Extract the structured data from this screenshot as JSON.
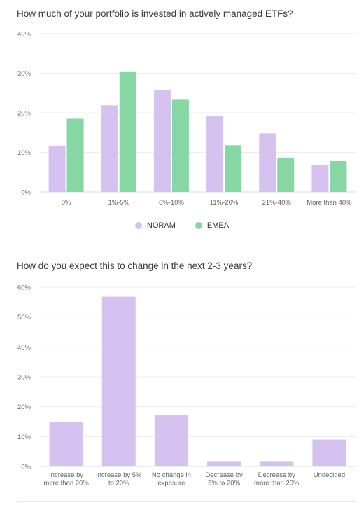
{
  "chart_data": [
    {
      "type": "bar",
      "title": "How much of your portfolio is invested in actively managed ETFs?",
      "categories": [
        "0%",
        "1%-5%",
        "6%-10%",
        "11%-20%",
        "21%-40%",
        "More than 40%"
      ],
      "series": [
        {
          "name": "NORAM",
          "values": [
            11.7,
            21.9,
            25.7,
            19.3,
            14.8,
            6.9
          ],
          "color": "#d5c2f0"
        },
        {
          "name": "EMEA",
          "values": [
            18.5,
            30.3,
            23.3,
            11.8,
            8.6,
            7.8
          ],
          "color": "#87d7a4"
        }
      ],
      "yticks": [
        "0%",
        "10%",
        "20%",
        "30%",
        "40%"
      ],
      "ylim": [
        0,
        40
      ],
      "grid": true,
      "legend": "bottom-center"
    },
    {
      "type": "bar",
      "title": "How do you expect this to change in the next 2-3 years?",
      "categories": [
        [
          "Increase by",
          "more than 20%"
        ],
        [
          "Increase by 5%",
          "to 20%"
        ],
        [
          "No change in",
          "exposure"
        ],
        [
          "Decrease by",
          "5% to 20%"
        ],
        [
          "Decrease by",
          "more than 20%"
        ],
        [
          "Undecided"
        ]
      ],
      "series": [
        {
          "values": [
            14.9,
            56.8,
            17.1,
            1.8,
            1.8,
            9.0
          ],
          "color": "#d5c2f0"
        }
      ],
      "yticks": [
        "0%",
        "10%",
        "20%",
        "30%",
        "40%",
        "50%",
        "60%"
      ],
      "ylim": [
        0,
        60
      ],
      "grid": true
    }
  ]
}
